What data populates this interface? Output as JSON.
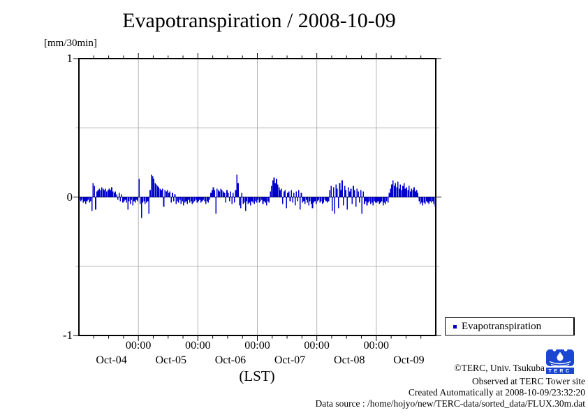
{
  "title": "Evapotranspiration / 2008-10-09",
  "y_axis": {
    "units_label": "[mm/30min]",
    "tick_labels": [
      "1",
      "0",
      "-1"
    ]
  },
  "x_axis": {
    "title": "(LST)",
    "midnight_label": "00:00",
    "day_labels": [
      "Oct-04",
      "Oct-05",
      "Oct-06",
      "Oct-07",
      "Oct-08",
      "Oct-09"
    ]
  },
  "legend": {
    "label": "Evapotranspiration",
    "marker_color": "#0000cc"
  },
  "credits": {
    "copyright": "©TERC, Univ. Tsukuba",
    "observed": "Observed at TERC Tower site",
    "created": "Created Automatically at 2008-10-09/23:32:20",
    "data_source": "Data source : /home/hojyo/new/TERC-data/sorted_data/FLUX.30m.dat"
  },
  "logo": {
    "text": "TERC",
    "color": "#1a46d2"
  },
  "chart_data": {
    "type": "bar",
    "title": "Evapotranspiration / 2008-10-09",
    "xlabel": "(LST)",
    "ylabel": "[mm/30min]",
    "ylim": [
      -1,
      1
    ],
    "y_tick_labels": [
      "1",
      "0",
      "-1"
    ],
    "y_gridlines": [
      0.5,
      -0.5
    ],
    "grid": "on",
    "legend_position": "bottom-right-outside",
    "bar_color": "#0000cc",
    "grid_color": "#b3b3b3",
    "x_days": [
      "Oct-04",
      "Oct-05",
      "Oct-06",
      "Oct-07",
      "Oct-08",
      "Oct-09"
    ],
    "x_midnight_label": "00:00",
    "samples_per_day": 48,
    "sample_interval": "30min",
    "series": [
      {
        "name": "Evapotranspiration",
        "values": [
          -0.02,
          -0.03,
          -0.02,
          -0.04,
          -0.03,
          -0.05,
          -0.03,
          -0.02,
          -0.04,
          -0.03,
          -0.1,
          0.1,
          0.08,
          -0.09,
          0.04,
          0.05,
          0.06,
          0.05,
          0.07,
          0.06,
          0.05,
          0.06,
          0.04,
          0.05,
          0.06,
          0.05,
          0.07,
          0.04,
          0.03,
          0.04,
          0.02,
          -0.02,
          0.03,
          -0.03,
          0.02,
          -0.04,
          -0.03,
          -0.02,
          -0.04,
          -0.09,
          -0.03,
          -0.05,
          -0.02,
          -0.06,
          -0.03,
          -0.04,
          -0.02,
          -0.03,
          0.13,
          -0.05,
          -0.15,
          -0.04,
          -0.03,
          -0.05,
          -0.04,
          -0.03,
          -0.12,
          0.05,
          0.16,
          0.15,
          0.13,
          0.1,
          0.09,
          0.08,
          0.07,
          0.06,
          0.05,
          0.06,
          -0.07,
          0.05,
          0.04,
          0.05,
          0.03,
          0.04,
          -0.04,
          0.03,
          -0.03,
          0.02,
          -0.05,
          -0.03,
          -0.04,
          -0.02,
          -0.05,
          -0.03,
          -0.06,
          -0.04,
          -0.03,
          -0.05,
          -0.02,
          -0.04,
          -0.03,
          -0.05,
          -0.04,
          -0.03,
          -0.02,
          -0.04,
          -0.03,
          -0.02,
          -0.04,
          -0.03,
          -0.02,
          -0.03,
          -0.05,
          -0.03,
          -0.04,
          -0.02,
          0.03,
          0.05,
          0.07,
          0.05,
          -0.12,
          0.06,
          0.05,
          0.04,
          0.06,
          0.05,
          0.04,
          0.03,
          -0.04,
          0.05,
          0.03,
          -0.03,
          0.04,
          -0.05,
          0.03,
          -0.04,
          0.05,
          0.16,
          0.1,
          -0.06,
          -0.08,
          0.03,
          -0.05,
          -0.04,
          -0.1,
          -0.03,
          -0.05,
          -0.04,
          -0.06,
          -0.03,
          -0.04,
          -0.05,
          -0.03,
          -0.04,
          -0.02,
          -0.04,
          -0.03,
          -0.02,
          -0.05,
          -0.03,
          -0.04,
          -0.06,
          -0.03,
          -0.04,
          0.04,
          0.08,
          0.12,
          0.14,
          0.1,
          0.13,
          0.09,
          0.07,
          0.05,
          0.06,
          -0.05,
          0.04,
          0.05,
          -0.08,
          0.03,
          0.04,
          -0.03,
          0.05,
          -0.04,
          0.03,
          -0.06,
          0.04,
          -0.03,
          0.05,
          -0.09,
          0.03,
          -0.04,
          -0.03,
          -0.05,
          -0.02,
          -0.04,
          -0.06,
          -0.03,
          -0.05,
          -0.08,
          -0.04,
          -0.03,
          -0.05,
          -0.03,
          -0.02,
          -0.04,
          -0.03,
          -0.05,
          -0.04,
          -0.02,
          -0.03,
          -0.04,
          -0.03,
          0.05,
          0.08,
          -0.1,
          0.07,
          -0.12,
          0.09,
          0.06,
          -0.08,
          0.1,
          0.05,
          0.12,
          -0.06,
          0.08,
          0.05,
          -0.09,
          0.07,
          0.04,
          0.06,
          -0.05,
          0.08,
          0.05,
          -0.07,
          0.06,
          0.04,
          -0.04,
          0.05,
          -0.12,
          0.04,
          -0.05,
          -0.03,
          -0.06,
          -0.04,
          -0.03,
          -0.05,
          -0.04,
          -0.06,
          -0.03,
          -0.04,
          -0.04,
          -0.03,
          -0.05,
          -0.04,
          -0.03,
          -0.06,
          -0.04,
          -0.05,
          -0.03,
          -0.04,
          0.03,
          0.06,
          0.09,
          0.12,
          0.08,
          0.1,
          0.07,
          0.11,
          0.06,
          0.09,
          0.05,
          0.08,
          0.1,
          0.06,
          0.07,
          0.05,
          0.08,
          0.04,
          0.06,
          0.05,
          0.07,
          0.04,
          0.05,
          0.03,
          -0.03,
          -0.05,
          -0.04,
          -0.06,
          -0.04,
          -0.05,
          -0.03,
          -0.04,
          -0.05,
          -0.03,
          -0.04,
          -0.03,
          -0.05,
          -0.07
        ]
      }
    ]
  }
}
